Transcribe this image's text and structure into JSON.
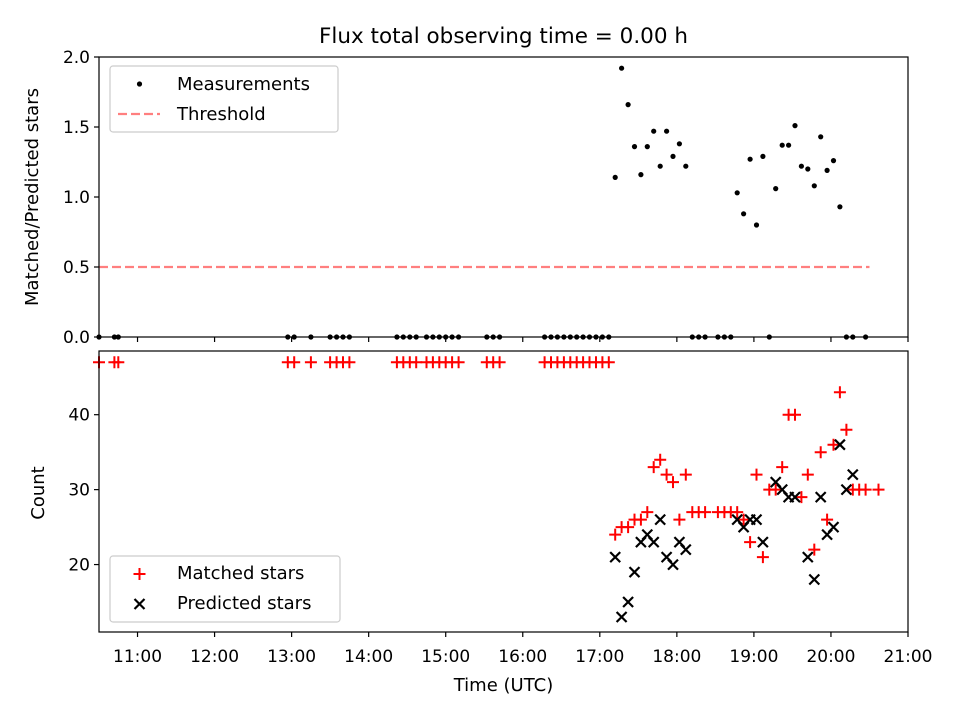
{
  "chart_data": [
    {
      "type": "scatter",
      "title": "Flux total observing time = 0.00 h",
      "xlabel": "",
      "ylabel": "Matched/Predicted stars",
      "xlim": [
        "10:30",
        "21:00"
      ],
      "ylim": [
        0,
        2.0
      ],
      "yticks": [
        "0.0",
        "0.5",
        "1.0",
        "1.5",
        "2.0"
      ],
      "legend": {
        "placement": "upper-left",
        "entries": [
          "Measurements",
          "Threshold"
        ]
      },
      "colors": {
        "measurements": "#000000",
        "threshold": "#ff7f7f"
      },
      "threshold": {
        "name": "Threshold",
        "value": 0.5,
        "x_start": "10:30",
        "x_end": "20:30"
      },
      "series": [
        {
          "name": "Measurements",
          "points": [
            [
              "10:30",
              0
            ],
            [
              "10:42",
              0
            ],
            [
              "10:45",
              0
            ],
            [
              "12:57",
              0
            ],
            [
              "13:02",
              0
            ],
            [
              "13:15",
              0
            ],
            [
              "13:30",
              0
            ],
            [
              "13:35",
              0
            ],
            [
              "13:40",
              0
            ],
            [
              "13:45",
              0
            ],
            [
              "14:22",
              0
            ],
            [
              "14:27",
              0
            ],
            [
              "14:32",
              0
            ],
            [
              "14:37",
              0
            ],
            [
              "14:45",
              0
            ],
            [
              "14:50",
              0
            ],
            [
              "14:55",
              0
            ],
            [
              "15:00",
              0
            ],
            [
              "15:05",
              0
            ],
            [
              "15:10",
              0
            ],
            [
              "15:32",
              0
            ],
            [
              "15:37",
              0
            ],
            [
              "15:42",
              0
            ],
            [
              "16:17",
              0
            ],
            [
              "16:22",
              0
            ],
            [
              "16:27",
              0
            ],
            [
              "16:32",
              0
            ],
            [
              "16:37",
              0
            ],
            [
              "16:42",
              0
            ],
            [
              "16:47",
              0
            ],
            [
              "16:52",
              0
            ],
            [
              "16:57",
              0
            ],
            [
              "17:02",
              0
            ],
            [
              "17:07",
              0
            ],
            [
              "17:12",
              1.14
            ],
            [
              "17:17",
              1.92
            ],
            [
              "17:22",
              1.66
            ],
            [
              "17:27",
              1.36
            ],
            [
              "17:32",
              1.16
            ],
            [
              "17:37",
              1.36
            ],
            [
              "17:42",
              1.47
            ],
            [
              "17:47",
              1.22
            ],
            [
              "17:52",
              1.47
            ],
            [
              "17:57",
              1.29
            ],
            [
              "18:02",
              1.38
            ],
            [
              "18:07",
              1.22
            ],
            [
              "18:12",
              0
            ],
            [
              "18:17",
              0
            ],
            [
              "18:22",
              0
            ],
            [
              "18:32",
              0
            ],
            [
              "18:37",
              0
            ],
            [
              "18:42",
              0
            ],
            [
              "18:47",
              1.03
            ],
            [
              "18:52",
              0.88
            ],
            [
              "18:57",
              1.27
            ],
            [
              "19:02",
              0.8
            ],
            [
              "19:07",
              1.29
            ],
            [
              "19:12",
              0
            ],
            [
              "19:17",
              1.06
            ],
            [
              "19:22",
              1.37
            ],
            [
              "19:27",
              1.37
            ],
            [
              "19:32",
              1.51
            ],
            [
              "19:37",
              1.22
            ],
            [
              "19:42",
              1.2
            ],
            [
              "19:47",
              1.08
            ],
            [
              "19:52",
              1.43
            ],
            [
              "19:57",
              1.19
            ],
            [
              "20:02",
              1.26
            ],
            [
              "20:07",
              0.93
            ],
            [
              "20:12",
              0
            ],
            [
              "20:17",
              0
            ],
            [
              "20:27",
              0
            ]
          ]
        }
      ]
    },
    {
      "type": "scatter",
      "title": "",
      "xlabel": "Time (UTC)",
      "ylabel": "Count",
      "xlim": [
        "10:30",
        "21:00"
      ],
      "ylim": [
        11,
        48.5
      ],
      "xticks": [
        "11:00",
        "12:00",
        "13:00",
        "14:00",
        "15:00",
        "16:00",
        "17:00",
        "18:00",
        "19:00",
        "20:00",
        "21:00"
      ],
      "yticks": [
        "20",
        "30",
        "40"
      ],
      "legend": {
        "placement": "lower-left",
        "entries": [
          "Matched stars",
          "Predicted stars"
        ]
      },
      "colors": {
        "matched": "#ff0000",
        "predicted": "#000000"
      },
      "series": [
        {
          "name": "Matched stars",
          "marker": "plus",
          "points": [
            [
              "10:30",
              47
            ],
            [
              "10:42",
              47
            ],
            [
              "10:45",
              47
            ],
            [
              "12:57",
              47
            ],
            [
              "13:02",
              47
            ],
            [
              "13:15",
              47
            ],
            [
              "13:30",
              47
            ],
            [
              "13:35",
              47
            ],
            [
              "13:40",
              47
            ],
            [
              "13:45",
              47
            ],
            [
              "14:22",
              47
            ],
            [
              "14:27",
              47
            ],
            [
              "14:32",
              47
            ],
            [
              "14:37",
              47
            ],
            [
              "14:45",
              47
            ],
            [
              "14:50",
              47
            ],
            [
              "14:55",
              47
            ],
            [
              "15:00",
              47
            ],
            [
              "15:05",
              47
            ],
            [
              "15:10",
              47
            ],
            [
              "15:32",
              47
            ],
            [
              "15:37",
              47
            ],
            [
              "15:42",
              47
            ],
            [
              "16:17",
              47
            ],
            [
              "16:22",
              47
            ],
            [
              "16:27",
              47
            ],
            [
              "16:32",
              47
            ],
            [
              "16:37",
              47
            ],
            [
              "16:42",
              47
            ],
            [
              "16:47",
              47
            ],
            [
              "16:52",
              47
            ],
            [
              "16:57",
              47
            ],
            [
              "17:02",
              47
            ],
            [
              "17:07",
              47
            ],
            [
              "17:12",
              24
            ],
            [
              "17:17",
              25
            ],
            [
              "17:22",
              25
            ],
            [
              "17:27",
              26
            ],
            [
              "17:32",
              26
            ],
            [
              "17:37",
              27
            ],
            [
              "17:42",
              33
            ],
            [
              "17:47",
              34
            ],
            [
              "17:52",
              32
            ],
            [
              "17:57",
              31
            ],
            [
              "18:02",
              26
            ],
            [
              "18:07",
              32
            ],
            [
              "18:12",
              27
            ],
            [
              "18:17",
              27
            ],
            [
              "18:22",
              27
            ],
            [
              "18:32",
              27
            ],
            [
              "18:37",
              27
            ],
            [
              "18:42",
              27
            ],
            [
              "18:47",
              27
            ],
            [
              "18:52",
              26
            ],
            [
              "18:57",
              23
            ],
            [
              "19:02",
              32
            ],
            [
              "19:07",
              21
            ],
            [
              "19:12",
              30
            ],
            [
              "19:17",
              30
            ],
            [
              "19:22",
              33
            ],
            [
              "19:27",
              40
            ],
            [
              "19:32",
              40
            ],
            [
              "19:37",
              29
            ],
            [
              "19:42",
              32
            ],
            [
              "19:47",
              22
            ],
            [
              "19:52",
              35
            ],
            [
              "19:57",
              26
            ],
            [
              "20:02",
              36
            ],
            [
              "20:07",
              43
            ],
            [
              "20:12",
              38
            ],
            [
              "20:17",
              30
            ],
            [
              "20:22",
              30
            ],
            [
              "20:27",
              30
            ],
            [
              "20:37",
              30
            ]
          ]
        },
        {
          "name": "Predicted stars",
          "marker": "x",
          "points": [
            [
              "17:12",
              21
            ],
            [
              "17:17",
              13
            ],
            [
              "17:22",
              15
            ],
            [
              "17:27",
              19
            ],
            [
              "17:32",
              23
            ],
            [
              "17:37",
              24
            ],
            [
              "17:42",
              23
            ],
            [
              "17:47",
              26
            ],
            [
              "17:52",
              21
            ],
            [
              "17:57",
              20
            ],
            [
              "18:02",
              23
            ],
            [
              "18:07",
              22
            ],
            [
              "18:47",
              26
            ],
            [
              "18:52",
              25
            ],
            [
              "18:57",
              26
            ],
            [
              "19:02",
              26
            ],
            [
              "19:07",
              23
            ],
            [
              "19:17",
              31
            ],
            [
              "19:22",
              30
            ],
            [
              "19:27",
              29
            ],
            [
              "19:32",
              29
            ],
            [
              "19:42",
              21
            ],
            [
              "19:47",
              18
            ],
            [
              "19:52",
              29
            ],
            [
              "19:57",
              24
            ],
            [
              "20:02",
              25
            ],
            [
              "20:07",
              36
            ],
            [
              "20:12",
              30
            ],
            [
              "20:17",
              32
            ]
          ]
        }
      ]
    }
  ]
}
